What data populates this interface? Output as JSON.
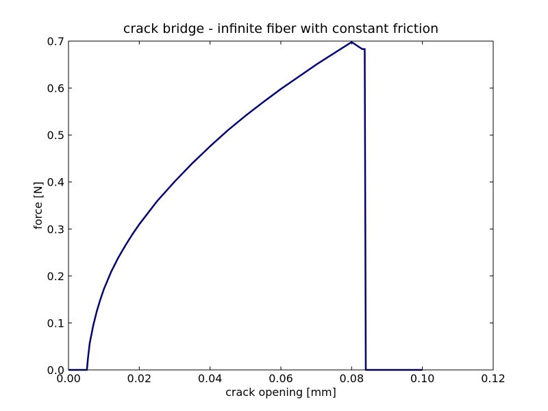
{
  "chart_data": {
    "type": "line",
    "title": "crack bridge - infinite fiber with constant friction",
    "xlabel": "crack opening [mm]",
    "ylabel": "force [N]",
    "xlim": [
      0.0,
      0.12
    ],
    "ylim": [
      0.0,
      0.7
    ],
    "xticks": [
      "0.00",
      "0.02",
      "0.04",
      "0.06",
      "0.08",
      "0.10",
      "0.12"
    ],
    "yticks": [
      "0.0",
      "0.1",
      "0.2",
      "0.3",
      "0.4",
      "0.5",
      "0.6",
      "0.7"
    ],
    "grid": false,
    "legend": "none",
    "series": [
      {
        "color": "#000080",
        "x": [
          0.0,
          0.005,
          0.0052,
          0.0055,
          0.006,
          0.007,
          0.008,
          0.009,
          0.01,
          0.012,
          0.014,
          0.016,
          0.018,
          0.02,
          0.025,
          0.03,
          0.035,
          0.04,
          0.045,
          0.05,
          0.055,
          0.06,
          0.065,
          0.07,
          0.075,
          0.08,
          0.083,
          0.0837,
          0.084,
          0.09,
          0.1
        ],
        "y": [
          0.0,
          0.0,
          0.0,
          0.025,
          0.057,
          0.095,
          0.125,
          0.15,
          0.172,
          0.208,
          0.238,
          0.264,
          0.288,
          0.31,
          0.359,
          0.401,
          0.44,
          0.476,
          0.51,
          0.541,
          0.57,
          0.598,
          0.624,
          0.65,
          0.674,
          0.698,
          0.683,
          0.683,
          0.0,
          0.0,
          0.0
        ]
      }
    ]
  }
}
